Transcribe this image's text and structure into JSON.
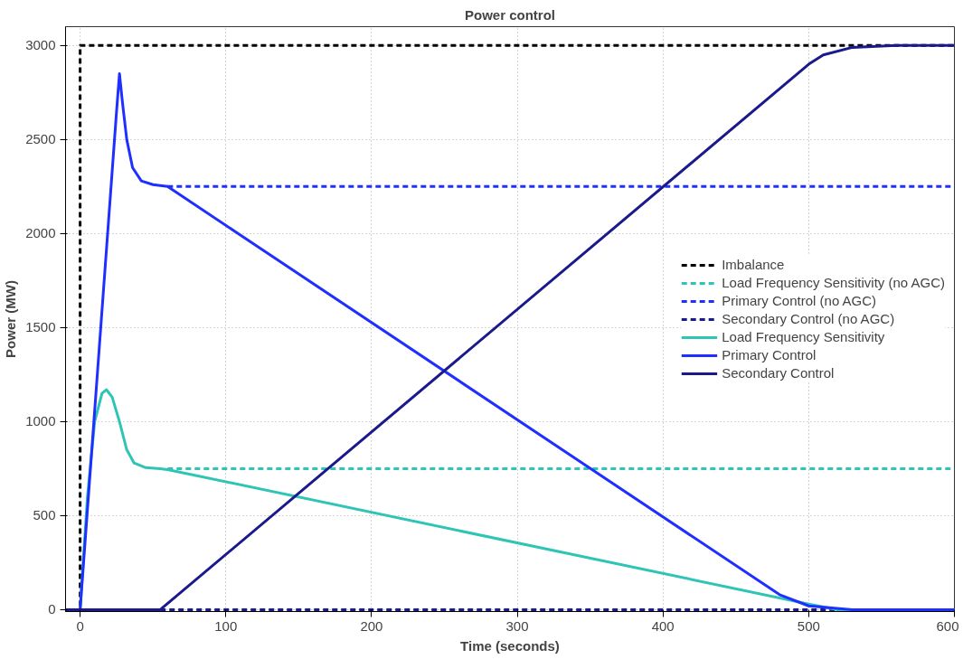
{
  "chart_data": {
    "type": "line",
    "title": "Power control",
    "xlabel": "Time (seconds)",
    "ylabel": "Power (MW)",
    "xlim": [
      -10,
      600
    ],
    "ylim": [
      -10,
      3100
    ],
    "xticks": [
      0,
      100,
      200,
      300,
      400,
      500,
      600
    ],
    "yticks": [
      0,
      500,
      1000,
      1500,
      2000,
      2500,
      3000
    ],
    "grid": true,
    "legend": "right",
    "marker": "none",
    "series": [
      {
        "name": "Imbalance",
        "color": "#000000",
        "line_style": "dashed",
        "x": [
          -10,
          0,
          0,
          600
        ],
        "values": [
          0,
          0,
          3000,
          3000
        ]
      },
      {
        "name": "Load Frequency Sensitivity (no AGC)",
        "color": "#2ec4b6",
        "line_style": "dashed",
        "x": [
          60,
          600
        ],
        "values": [
          750,
          750
        ]
      },
      {
        "name": "Primary Control (no AGC)",
        "color": "#1f2fff",
        "line_style": "dashed",
        "x": [
          60,
          600
        ],
        "values": [
          2250,
          2250
        ]
      },
      {
        "name": "Secondary Control (no AGC)",
        "color": "#1a1a8c",
        "line_style": "dashed",
        "x": [
          55,
          600
        ],
        "values": [
          0,
          0
        ]
      },
      {
        "name": "Load Frequency Sensitivity",
        "color": "#2ec4b6",
        "line_style": "solid",
        "x": [
          0,
          5,
          10,
          15,
          18,
          22,
          27,
          32,
          37,
          45,
          55,
          60,
          500,
          520,
          600
        ],
        "values": [
          0,
          600,
          1000,
          1150,
          1170,
          1130,
          1000,
          850,
          780,
          755,
          750,
          745,
          30,
          0,
          0
        ]
      },
      {
        "name": "Primary Control",
        "color": "#1f2fff",
        "line_style": "solid",
        "x": [
          0,
          25,
          27,
          29,
          32,
          36,
          42,
          50,
          60,
          480,
          500,
          530,
          600
        ],
        "values": [
          0,
          2650,
          2850,
          2700,
          2500,
          2350,
          2280,
          2260,
          2250,
          80,
          20,
          0,
          0
        ]
      },
      {
        "name": "Secondary Control",
        "color": "#1a1a8c",
        "line_style": "solid",
        "x": [
          -10,
          55,
          500,
          510,
          530,
          560,
          600
        ],
        "values": [
          0,
          0,
          2900,
          2950,
          2990,
          3000,
          3000
        ]
      }
    ]
  }
}
